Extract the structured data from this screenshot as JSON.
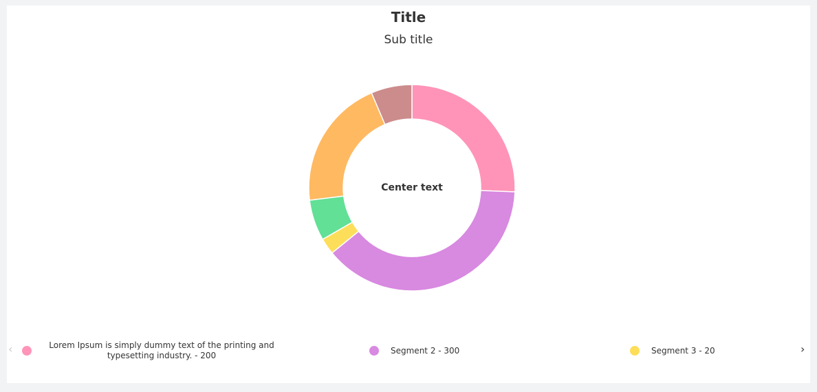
{
  "chart_data": {
    "type": "pie",
    "variant": "donut",
    "title": "Title",
    "subtitle": "Sub title",
    "center_text": "Center text",
    "segments": [
      {
        "name": "Lorem Ipsum is simply dummy text of the printing and typesetting industry.",
        "value": 200,
        "color": "#ff94b8"
      },
      {
        "name": "Segment 2",
        "value": 300,
        "color": "#d889e0"
      },
      {
        "name": "Segment 3",
        "value": 20,
        "color": "#fdde5b"
      },
      {
        "name": "",
        "value": 50,
        "color": "#61e096"
      },
      {
        "name": "",
        "value": 160,
        "color": "#ffb961"
      },
      {
        "name": "",
        "value": 50,
        "color": "#cc8c8c"
      }
    ],
    "legend_position": "bottom",
    "legend": [
      {
        "label": "Lorem Ipsum is simply dummy text of the printing and typesetting industry. - 200",
        "color": "#ff94b8"
      },
      {
        "label": "Segment 2 - 300",
        "color": "#d889e0"
      },
      {
        "label": "Segment 3 - 20",
        "color": "#fdde5b"
      }
    ]
  },
  "legend_nav": {
    "prev": "‹",
    "next": "›"
  }
}
